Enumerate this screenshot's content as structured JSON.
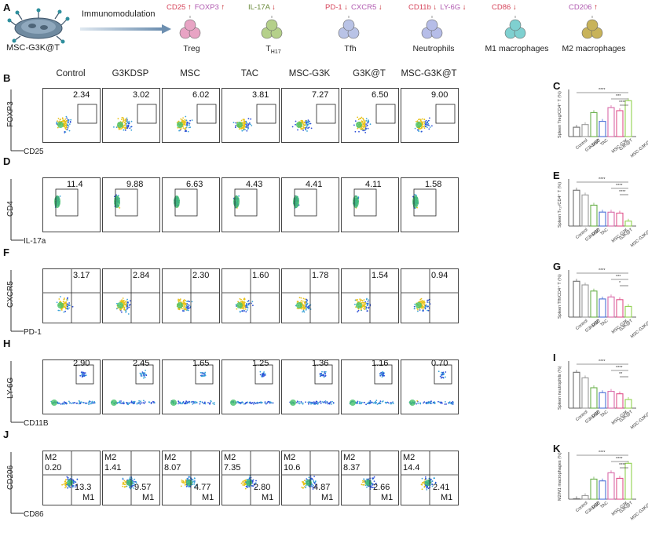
{
  "header": {
    "panel": "A",
    "source_label": "MSC-G3K@T",
    "arrow_label": "Immunomodulation",
    "cells": [
      {
        "name": "Treg",
        "sub": "",
        "markers": [
          {
            "text": "CD25",
            "dir": "↑",
            "color": "#d6455b"
          },
          {
            "text": "FOXP3",
            "dir": "↑",
            "color": "#b05ab0"
          }
        ]
      },
      {
        "name": "T",
        "sub": "H17",
        "markers": [
          {
            "text": "IL-17A",
            "dir": "↓",
            "color": "#6a8a3a"
          }
        ]
      },
      {
        "name": "Tfh",
        "sub": "",
        "markers": [
          {
            "text": "PD-1",
            "dir": "↓",
            "color": "#d6455b"
          },
          {
            "text": "CXCR5",
            "dir": "↓",
            "color": "#b05ab0"
          }
        ]
      },
      {
        "name": "Neutrophils",
        "sub": "",
        "markers": [
          {
            "text": "CD11b",
            "dir": "↓",
            "color": "#d6455b"
          },
          {
            "text": "LY-6G",
            "dir": "↓",
            "color": "#b05ab0"
          }
        ]
      },
      {
        "name": "M1 macrophages",
        "sub": "",
        "markers": [
          {
            "text": "CD86",
            "dir": "↓",
            "color": "#d6455b"
          }
        ]
      },
      {
        "name": "M2 macrophages",
        "sub": "",
        "markers": [
          {
            "text": "CD206",
            "dir": "↑",
            "color": "#b05ab0"
          }
        ]
      }
    ],
    "colors": {
      "up_arrow": "#c0161c",
      "down_arrow": "#c0161c"
    }
  },
  "samples": [
    "Control",
    "G3KDSP",
    "MSC",
    "TAC",
    "MSC-G3K",
    "G3K@T",
    "MSC-G3K@T"
  ],
  "rows": [
    {
      "panel": "B",
      "bar_panel": "C",
      "ylabel": "FOXP3",
      "xlabel": "CD25",
      "values": [
        "2.34",
        "3.02",
        "6.02",
        "3.81",
        "7.27",
        "6.50",
        "9.00"
      ],
      "bar_ylabel": "Spleen Treg/CD4⁺ T (%)",
      "sig": [
        "****",
        "***",
        "****"
      ]
    },
    {
      "panel": "D",
      "bar_panel": "E",
      "ylabel": "CD4",
      "xlabel": "IL-17a",
      "values": [
        "11.4",
        "9.88",
        "6.63",
        "4.43",
        "4.41",
        "4.11",
        "1.58"
      ],
      "bar_ylabel": "Spleen Tₕ₁₇/CD4⁺ T (%)",
      "sig": [
        "****",
        "****",
        "****"
      ]
    },
    {
      "panel": "F",
      "bar_panel": "G",
      "ylabel": "CXCR5",
      "xlabel": "PD-1",
      "values": [
        "3.17",
        "2.84",
        "2.30",
        "1.60",
        "1.78",
        "1.54",
        "0.94"
      ],
      "bar_ylabel": "Spleen Tfh/CD4⁺ T (%)",
      "sig": [
        "****",
        "***",
        "*"
      ]
    },
    {
      "panel": "H",
      "bar_panel": "I",
      "ylabel": "LY-6G",
      "xlabel": "CD11B",
      "values": [
        "2.90",
        "2.45",
        "1.65",
        "1.25",
        "1.36",
        "1.16",
        "0.70"
      ],
      "bar_ylabel": "Spleen neutrophils (%)",
      "sig": [
        "****",
        "****",
        "**"
      ]
    },
    {
      "panel": "J",
      "bar_panel": "K",
      "ylabel": "CD206",
      "xlabel": "CD86",
      "m2": [
        "0.20",
        "1.41",
        "8.07",
        "7.35",
        "10.6",
        "8.37",
        "14.4"
      ],
      "m1": [
        "13.3",
        "9.57",
        "4.77",
        "2.80",
        "4.87",
        "2.66",
        "2.41"
      ],
      "m1_label": "M1",
      "m2_label": "M2",
      "bar_ylabel": "M2/M1 macrophages (%)",
      "sig": [
        "****",
        "****",
        "****"
      ]
    }
  ],
  "bar_categories": [
    "Control",
    "G3KDSP",
    "MSC",
    "TAC",
    "MSC-G3K",
    "G3K@T",
    "MSC-G3K@T"
  ],
  "bar_series_colors": [
    "#6d6d6d",
    "#9a9a9a",
    "#6ab04c",
    "#4a6fd6",
    "#d86aa8",
    "#e0508a",
    "#8fd14f"
  ]
}
